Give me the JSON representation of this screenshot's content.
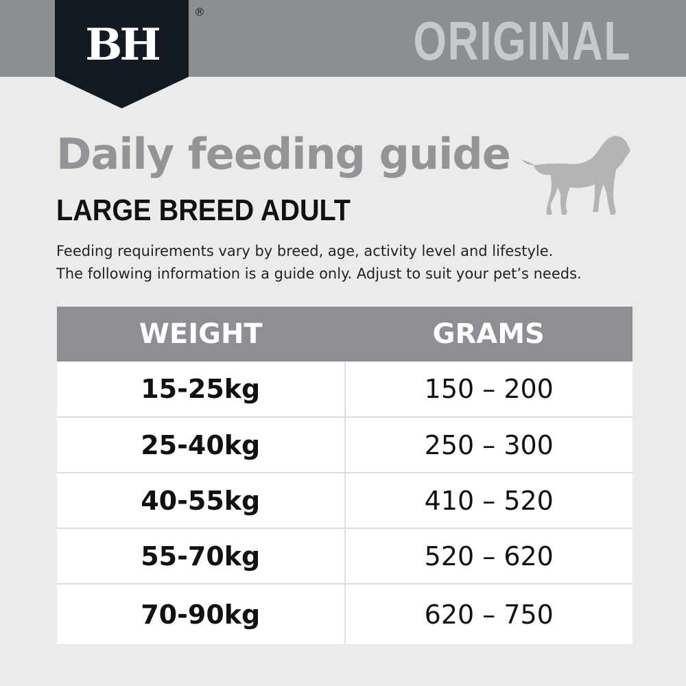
{
  "brand": {
    "logo": "BH",
    "registered": "®",
    "variant": "ORIGINAL"
  },
  "title": "Daily feeding guide",
  "subtitle": "LARGE BREED ADULT",
  "description": [
    "Feeding requirements vary by breed, age, activity level and lifestyle.",
    "The following information is a guide only. Adjust to suit your pet’s needs."
  ],
  "icon": "dog-silhouette-icon",
  "table": {
    "headers": [
      "WEIGHT",
      "GRAMS"
    ],
    "rows": [
      {
        "weight": "15-25kg",
        "grams": "150 – 200"
      },
      {
        "weight": "25-40kg",
        "grams": "250 – 300"
      },
      {
        "weight": "40-55kg",
        "grams": "410 – 520"
      },
      {
        "weight": "55-70kg",
        "grams": "520 – 620"
      },
      {
        "weight": "70-90kg",
        "grams": "620 – 750"
      }
    ]
  },
  "colors": {
    "band": "#8b8e92",
    "logo": "#131a21",
    "title": "#929497",
    "header": "#8d8f92"
  }
}
